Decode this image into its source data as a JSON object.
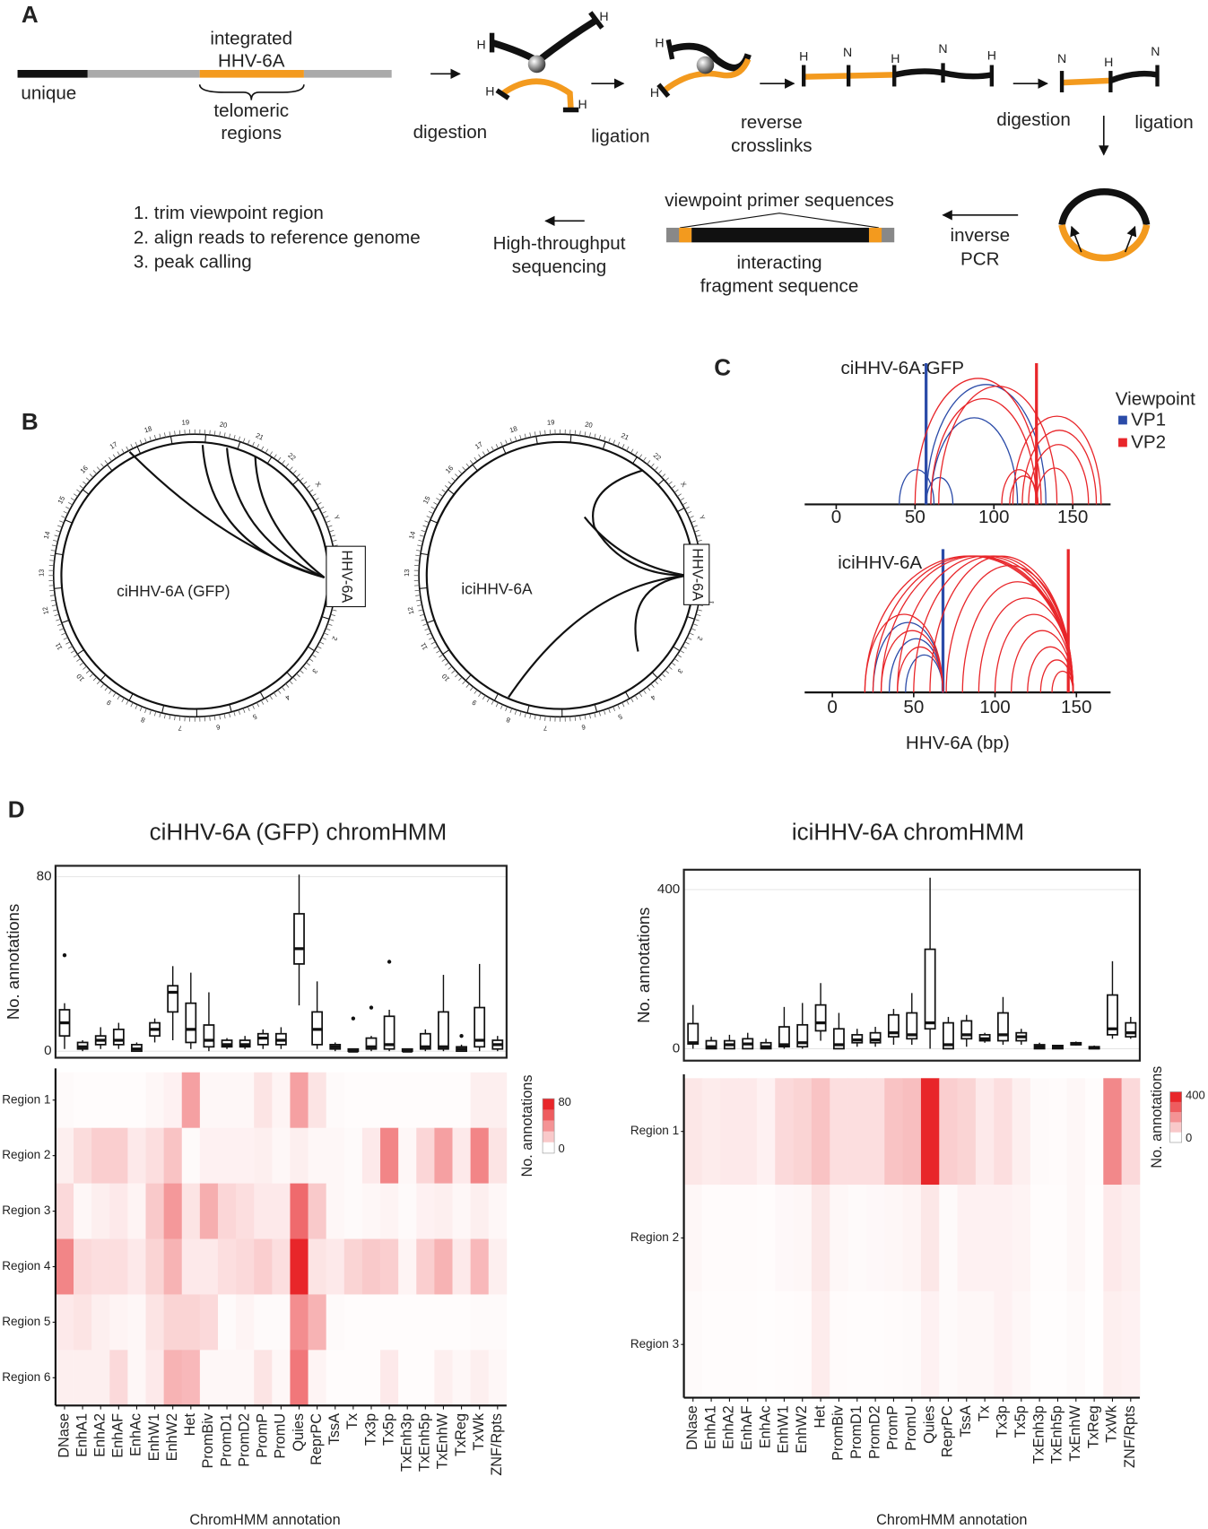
{
  "panel_labels": [
    "A",
    "B",
    "C",
    "D"
  ],
  "diagram": {
    "integrated": [
      "integrated",
      "HHV-6A"
    ],
    "unique": "unique",
    "telomeric": [
      "telomeric",
      "regions"
    ],
    "digestion_1": "digestion",
    "ligation_1": "ligation",
    "reverse_crosslinks": [
      "reverse",
      "crosslinks"
    ],
    "digestion_2": "digestion",
    "ligation_2": "ligation",
    "inverse_pcr": [
      "inverse",
      "PCR"
    ],
    "primer": "viewpoint primer sequences",
    "fragment": [
      "interacting",
      "fragment sequence"
    ],
    "sequencing": [
      "High-throughput",
      "sequencing"
    ],
    "analysis": [
      "1. trim viewpoint region",
      "2. align reads to reference genome",
      "3. peak calling"
    ],
    "end_labels": [
      "H",
      "H",
      "H",
      "H",
      "H",
      "H",
      "H",
      "N",
      "H",
      "N",
      "H",
      "N",
      "H",
      "N"
    ]
  },
  "circos": [
    {
      "label": "ciHHV-6A (GFP)",
      "insert": "HHV-6A",
      "chromosomes": [
        "1",
        "2",
        "3",
        "4",
        "5",
        "6",
        "7",
        "8",
        "9",
        "10",
        "11",
        "12",
        "13",
        "14",
        "15",
        "16",
        "17",
        "18",
        "19",
        "20",
        "21",
        "22",
        "X",
        "Y"
      ]
    },
    {
      "label": "iciHHV-6A",
      "insert": "HHV-6A",
      "chromosomes": [
        "1",
        "2",
        "3",
        "4",
        "5",
        "6",
        "7",
        "8",
        "9",
        "10",
        "11",
        "12",
        "13",
        "14",
        "15",
        "16",
        "17",
        "18",
        "19",
        "20",
        "21",
        "22",
        "X",
        "Y"
      ]
    }
  ],
  "chart_data": [
    {
      "type": "arc",
      "title": "ciHHV-6A:GFP",
      "legend_title": "Viewpoint",
      "xlim": [
        -20,
        174
      ],
      "xticks": [
        0,
        50,
        100,
        150
      ],
      "series": [
        {
          "name": "VP1",
          "color": "#2b4ba8",
          "viewpoint": 57,
          "arcs": [
            [
              40,
              62
            ],
            [
              57,
              74
            ],
            [
              60,
              115
            ],
            [
              57,
              133
            ]
          ]
        },
        {
          "name": "VP2",
          "color": "#e8262a",
          "viewpoint": 127,
          "arcs": [
            [
              112,
              168
            ],
            [
              118,
              165
            ],
            [
              122,
              160
            ],
            [
              127,
              150
            ],
            [
              105,
              127
            ],
            [
              110,
              128
            ],
            [
              60,
              127
            ],
            [
              50,
              130
            ],
            [
              65,
              140
            ]
          ]
        }
      ]
    },
    {
      "type": "arc",
      "title": "iciHHV-6A",
      "xlabel": "HHV-6A (bp)",
      "xlim": [
        -17,
        171
      ],
      "xticks": [
        0,
        50,
        100,
        150
      ],
      "series": [
        {
          "color": "#2b4ba8",
          "viewpoint": 68,
          "arcs": [
            [
              25,
              68
            ],
            [
              35,
              68
            ],
            [
              45,
              68
            ]
          ]
        },
        {
          "color": "#e8262a",
          "viewpoint": 145,
          "arcs": [
            [
              20,
              148
            ],
            [
              25,
              148
            ],
            [
              30,
              148
            ],
            [
              40,
              148
            ],
            [
              50,
              148
            ],
            [
              60,
              148
            ],
            [
              70,
              148
            ],
            [
              80,
              148
            ],
            [
              90,
              148
            ],
            [
              100,
              148
            ],
            [
              110,
              148
            ],
            [
              120,
              148
            ],
            [
              128,
              148
            ],
            [
              135,
              148
            ],
            [
              20,
              68
            ],
            [
              30,
              68
            ],
            [
              40,
              68
            ]
          ]
        }
      ]
    },
    {
      "type": "box-heatmap",
      "title": "ciHHV-6A (GFP) chromHMM",
      "xlabel": "ChromHMM annotation",
      "categories": [
        "DNase",
        "EnhA1",
        "EnhA2",
        "EnhAF",
        "EnhAc",
        "EnhW1",
        "EnhW2",
        "Het",
        "PromBiv",
        "PromD1",
        "PromD2",
        "PromP",
        "PromU",
        "Quies",
        "ReprPC",
        "TssA",
        "Tx",
        "Tx3p",
        "Tx5p",
        "TxEnh3p",
        "TxEnh5p",
        "TxEnhW",
        "TxReg",
        "TxWk",
        "ZNF/Rpts"
      ],
      "box": {
        "ylabel": "No. annotations",
        "ylim": [
          -3,
          85
        ],
        "yticks": [
          0,
          80
        ],
        "values": [
          [
            1,
            7,
            13,
            19,
            22
          ],
          [
            0,
            1,
            2,
            4,
            5
          ],
          [
            1,
            3,
            5,
            7,
            11
          ],
          [
            1,
            3,
            5,
            10,
            13
          ],
          [
            0,
            0,
            1,
            3,
            4
          ],
          [
            4,
            7,
            10,
            13,
            15
          ],
          [
            5,
            18,
            27,
            30,
            39
          ],
          [
            1,
            4,
            10,
            22,
            36
          ],
          [
            0,
            2,
            5,
            12,
            27
          ],
          [
            1,
            2,
            3,
            5,
            6
          ],
          [
            1,
            2,
            3,
            5,
            7
          ],
          [
            1,
            3,
            6,
            8,
            10
          ],
          [
            1,
            3,
            5,
            8,
            11
          ],
          [
            21,
            40,
            47,
            63,
            81
          ],
          [
            1,
            3,
            10,
            18,
            32
          ],
          [
            0,
            1,
            2,
            3,
            4
          ],
          [
            0,
            0,
            0,
            1,
            1
          ],
          [
            0,
            1,
            2,
            6,
            7
          ],
          [
            0,
            1,
            3,
            16,
            19
          ],
          [
            0,
            0,
            0,
            1,
            1
          ],
          [
            0,
            1,
            2,
            8,
            10
          ],
          [
            0,
            1,
            2,
            18,
            35
          ],
          [
            0,
            0,
            1,
            2,
            3
          ],
          [
            0,
            2,
            5,
            20,
            40
          ],
          [
            0,
            1,
            3,
            5,
            7
          ]
        ],
        "outliers": [
          [
            44
          ],
          [],
          [],
          [],
          [],
          [],
          [],
          [],
          [],
          [],
          [],
          [],
          [],
          [],
          [],
          [],
          [
            15
          ],
          [
            20
          ],
          [
            41
          ],
          [],
          [],
          [],
          [
            7
          ],
          [],
          []
        ]
      },
      "heatmap": {
        "rows": [
          "Region 1",
          "Region 2",
          "Region 3",
          "Region 4",
          "Region 5",
          "Region 6"
        ],
        "colorbar_title": "No. annotations",
        "clim": [
          0,
          80
        ],
        "cticks": [
          0,
          80
        ],
        "color": "#e8262a",
        "values": [
          [
            2,
            1,
            1,
            1,
            1,
            3,
            5,
            35,
            3,
            3,
            3,
            10,
            4,
            35,
            10,
            2,
            1,
            1,
            1,
            1,
            1,
            1,
            1,
            6,
            6
          ],
          [
            6,
            13,
            18,
            18,
            8,
            12,
            22,
            2,
            5,
            5,
            5,
            6,
            3,
            6,
            3,
            3,
            2,
            8,
            45,
            3,
            15,
            35,
            8,
            45,
            10
          ],
          [
            14,
            3,
            6,
            8,
            4,
            20,
            38,
            10,
            30,
            15,
            12,
            8,
            8,
            55,
            20,
            3,
            2,
            3,
            4,
            2,
            5,
            6,
            3,
            6,
            3
          ],
          [
            45,
            14,
            12,
            12,
            8,
            16,
            28,
            8,
            8,
            12,
            14,
            18,
            12,
            80,
            10,
            8,
            16,
            20,
            18,
            4,
            18,
            28,
            8,
            26,
            6
          ],
          [
            8,
            10,
            6,
            4,
            3,
            10,
            16,
            16,
            14,
            2,
            4,
            2,
            2,
            42,
            28,
            2,
            1,
            1,
            1,
            1,
            1,
            1,
            1,
            2,
            2
          ],
          [
            6,
            6,
            6,
            14,
            3,
            8,
            28,
            26,
            3,
            3,
            3,
            10,
            3,
            50,
            4,
            1,
            1,
            1,
            8,
            1,
            1,
            6,
            3,
            6,
            3
          ]
        ]
      }
    },
    {
      "type": "box-heatmap",
      "title": "iciHHV-6A chromHMM",
      "xlabel": "ChromHMM annotation",
      "categories": [
        "DNase",
        "EnhA1",
        "EnhA2",
        "EnhAF",
        "EnhAc",
        "EnhW1",
        "EnhW2",
        "Het",
        "PromBiv",
        "PromD1",
        "PromD2",
        "PromP",
        "PromU",
        "Quies",
        "ReprPC",
        "TssA",
        "Tx",
        "Tx3p",
        "Tx5p",
        "TxEnh3p",
        "TxEnh5p",
        "TxEnhW",
        "TxReg",
        "TxWk",
        "ZNF/Rpts"
      ],
      "box": {
        "ylabel": "No. annotations",
        "ylim": [
          -30,
          450
        ],
        "yticks": [
          0,
          400
        ],
        "values": [
          [
            0,
            12,
            15,
            63,
            110
          ],
          [
            0,
            0,
            5,
            20,
            30
          ],
          [
            0,
            0,
            10,
            20,
            35
          ],
          [
            0,
            0,
            12,
            25,
            40
          ],
          [
            0,
            0,
            5,
            15,
            25
          ],
          [
            0,
            5,
            10,
            55,
            105
          ],
          [
            0,
            5,
            15,
            60,
            115
          ],
          [
            20,
            45,
            65,
            110,
            165
          ],
          [
            0,
            0,
            10,
            50,
            90
          ],
          [
            5,
            15,
            22,
            35,
            50
          ],
          [
            5,
            15,
            22,
            40,
            55
          ],
          [
            10,
            30,
            40,
            85,
            100
          ],
          [
            10,
            25,
            35,
            90,
            140
          ],
          [
            0,
            50,
            65,
            250,
            430
          ],
          [
            0,
            0,
            10,
            65,
            80
          ],
          [
            5,
            25,
            35,
            70,
            85
          ],
          [
            15,
            20,
            25,
            35,
            40
          ],
          [
            10,
            20,
            35,
            90,
            130
          ],
          [
            10,
            20,
            30,
            40,
            50
          ],
          [
            0,
            0,
            5,
            10,
            15
          ],
          [
            0,
            0,
            5,
            8,
            10
          ],
          [
            8,
            10,
            12,
            15,
            18
          ],
          [
            0,
            0,
            2,
            5,
            8
          ],
          [
            25,
            35,
            50,
            135,
            220
          ],
          [
            25,
            30,
            40,
            65,
            80
          ]
        ],
        "outliers": [
          [],
          [],
          [],
          [],
          [],
          [],
          [],
          [],
          [],
          [],
          [],
          [],
          [],
          [],
          [],
          [],
          [],
          [],
          [],
          [],
          [],
          [],
          [],
          [],
          []
        ]
      },
      "heatmap": {
        "rows": [
          "Region 1",
          "Region 2",
          "Region 3"
        ],
        "colorbar_title": "No. annotations",
        "clim": [
          0,
          400
        ],
        "cticks": [
          0,
          400
        ],
        "color": "#e8262a",
        "values": [
          [
            45,
            35,
            40,
            40,
            25,
            70,
            80,
            110,
            60,
            60,
            60,
            110,
            120,
            400,
            90,
            80,
            40,
            60,
            30,
            10,
            8,
            15,
            5,
            220,
            70
          ],
          [
            15,
            8,
            8,
            8,
            5,
            12,
            15,
            45,
            15,
            10,
            12,
            15,
            20,
            45,
            10,
            25,
            25,
            25,
            20,
            5,
            5,
            15,
            3,
            40,
            30
          ],
          [
            10,
            5,
            5,
            5,
            3,
            5,
            8,
            35,
            8,
            5,
            5,
            8,
            10,
            25,
            10,
            15,
            15,
            25,
            15,
            3,
            3,
            10,
            2,
            30,
            25
          ]
        ]
      }
    }
  ]
}
